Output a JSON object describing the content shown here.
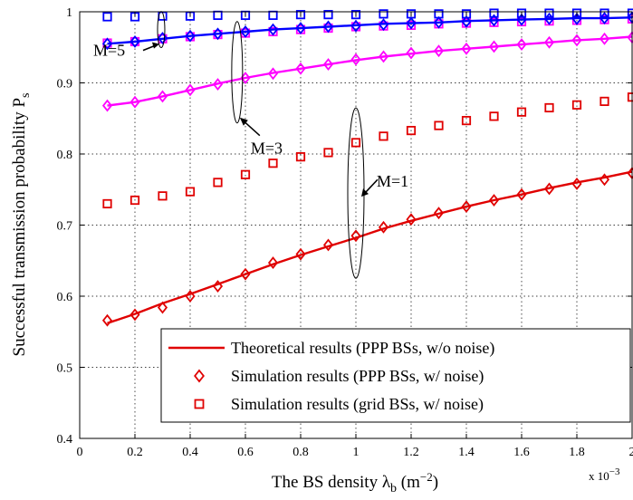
{
  "chart_data": {
    "type": "line",
    "xlabel": "The BS density λ_b (m^-2)",
    "ylabel": "Successful transmission probability P_s",
    "x_exponent_label": "x 10^-3",
    "xlim": [
      0,
      2
    ],
    "ylim": [
      0.4,
      1.0
    ],
    "x_ticks": [
      "0",
      "0.2",
      "0.4",
      "0.6",
      "0.8",
      "1",
      "1.2",
      "1.4",
      "1.6",
      "1.8",
      "2"
    ],
    "y_ticks": [
      "0.4",
      "0.5",
      "0.6",
      "0.7",
      "0.8",
      "0.9",
      "1"
    ],
    "grid": true,
    "legend_position": "bottom-right",
    "legend": [
      {
        "label": "Theoretical results (PPP BSs, w/o noise)",
        "marker": "line",
        "color": "#e00000"
      },
      {
        "label": "Simulation results (PPP BSs, w/ noise)",
        "marker": "diamond",
        "color": "#e00000"
      },
      {
        "label": "Simulation results (grid BSs, w/ noise)",
        "marker": "square",
        "color": "#e00000"
      }
    ],
    "x": [
      0.1,
      0.2,
      0.3,
      0.4,
      0.5,
      0.6,
      0.7,
      0.8,
      0.9,
      1.0,
      1.1,
      1.2,
      1.3,
      1.4,
      1.5,
      1.6,
      1.7,
      1.8,
      1.9,
      2.0
    ],
    "series": [
      {
        "M": 1,
        "kind": "theory",
        "color": "#e00000",
        "values": [
          0.562,
          0.575,
          0.59,
          0.603,
          0.617,
          0.631,
          0.645,
          0.658,
          0.67,
          0.682,
          0.695,
          0.706,
          0.716,
          0.726,
          0.735,
          0.743,
          0.752,
          0.76,
          0.767,
          0.775
        ]
      },
      {
        "M": 1,
        "kind": "sim_ppp",
        "color": "#e00000",
        "values": [
          0.566,
          0.574,
          0.584,
          0.6,
          0.614,
          0.631,
          0.647,
          0.659,
          0.672,
          0.685,
          0.697,
          0.708,
          0.717,
          0.726,
          0.735,
          0.743,
          0.751,
          0.758,
          0.764,
          0.773
        ]
      },
      {
        "M": 1,
        "kind": "sim_grid",
        "color": "#e00000",
        "values": [
          0.73,
          0.735,
          0.741,
          0.747,
          0.76,
          0.771,
          0.787,
          0.796,
          0.802,
          0.816,
          0.825,
          0.833,
          0.84,
          0.847,
          0.853,
          0.859,
          0.865,
          0.869,
          0.874,
          0.88
        ]
      },
      {
        "M": 3,
        "kind": "theory",
        "color": "#ff00ff",
        "values": [
          0.868,
          0.873,
          0.881,
          0.89,
          0.899,
          0.907,
          0.914,
          0.92,
          0.926,
          0.932,
          0.937,
          0.941,
          0.945,
          0.948,
          0.951,
          0.954,
          0.957,
          0.96,
          0.962,
          0.965
        ]
      },
      {
        "M": 3,
        "kind": "sim_ppp",
        "color": "#ff00ff",
        "values": [
          0.868,
          0.873,
          0.881,
          0.89,
          0.898,
          0.907,
          0.913,
          0.92,
          0.926,
          0.933,
          0.937,
          0.942,
          0.945,
          0.948,
          0.951,
          0.954,
          0.957,
          0.96,
          0.962,
          0.964
        ]
      },
      {
        "M": 3,
        "kind": "sim_grid",
        "color": "#ff00ff",
        "values": [
          0.956,
          0.958,
          0.962,
          0.965,
          0.968,
          0.97,
          0.972,
          0.975,
          0.977,
          0.979,
          0.98,
          0.981,
          0.983,
          0.984,
          0.985,
          0.986,
          0.987,
          0.988,
          0.989,
          0.99
        ]
      },
      {
        "M": 5,
        "kind": "theory",
        "color": "#0000ff",
        "values": [
          0.955,
          0.958,
          0.962,
          0.966,
          0.969,
          0.972,
          0.975,
          0.977,
          0.979,
          0.981,
          0.983,
          0.984,
          0.985,
          0.987,
          0.988,
          0.989,
          0.99,
          0.991,
          0.991,
          0.992
        ]
      },
      {
        "M": 5,
        "kind": "sim_ppp",
        "color": "#0000ff",
        "values": [
          0.955,
          0.958,
          0.963,
          0.966,
          0.969,
          0.972,
          0.975,
          0.977,
          0.979,
          0.98,
          0.982,
          0.984,
          0.985,
          0.986,
          0.988,
          0.989,
          0.99,
          0.99,
          0.991,
          0.992
        ]
      },
      {
        "M": 5,
        "kind": "sim_grid",
        "color": "#0000ff",
        "values": [
          0.993,
          0.993,
          0.994,
          0.994,
          0.995,
          0.995,
          0.995,
          0.996,
          0.996,
          0.996,
          0.997,
          0.997,
          0.997,
          0.997,
          0.998,
          0.998,
          0.998,
          0.998,
          0.998,
          0.998
        ]
      }
    ],
    "annotations": [
      {
        "text": "M=1",
        "ellipse_center": [
          1.0,
          0.745
        ]
      },
      {
        "text": "M=3",
        "ellipse_center": [
          0.57,
          0.915
        ]
      },
      {
        "text": "M=5",
        "ellipse_center": [
          0.295,
          0.975
        ]
      }
    ]
  }
}
